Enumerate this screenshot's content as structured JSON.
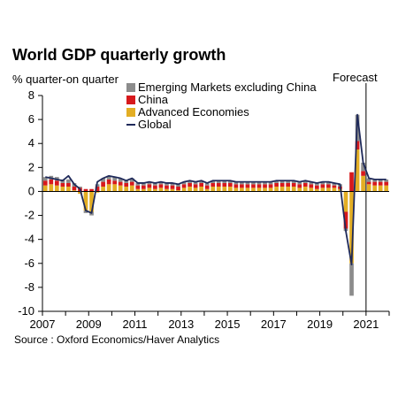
{
  "title": "World GDP quarterly growth",
  "forecast_label": "Forecast",
  "source": "Source : Oxford Economics/Haver Analytics",
  "colors": {
    "emerging": "#8c8c8c",
    "china": "#d7191c",
    "advanced": "#e3ae24",
    "global": "#1f2a5a"
  },
  "chart_data": {
    "type": "bar",
    "stacked": true,
    "title": "World GDP quarterly growth",
    "ylabel": "% quarter-on quarter",
    "xlabel": "",
    "ylim": [
      -10,
      8
    ],
    "yticks": [
      "8",
      "6",
      "4",
      "2",
      "0",
      "-2",
      "-4",
      "-6",
      "-8",
      "-10"
    ],
    "xticks": [
      "2007",
      "2009",
      "2011",
      "2013",
      "2015",
      "2017",
      "2019",
      "2021"
    ],
    "forecast_from": "2021Q1",
    "legend_position": "top",
    "categories": [
      "2007Q1",
      "2007Q2",
      "2007Q3",
      "2007Q4",
      "2008Q1",
      "2008Q2",
      "2008Q3",
      "2008Q4",
      "2009Q1",
      "2009Q2",
      "2009Q3",
      "2009Q4",
      "2010Q1",
      "2010Q2",
      "2010Q3",
      "2010Q4",
      "2011Q1",
      "2011Q2",
      "2011Q3",
      "2011Q4",
      "2012Q1",
      "2012Q2",
      "2012Q3",
      "2012Q4",
      "2013Q1",
      "2013Q2",
      "2013Q3",
      "2013Q4",
      "2014Q1",
      "2014Q2",
      "2014Q3",
      "2014Q4",
      "2015Q1",
      "2015Q2",
      "2015Q3",
      "2015Q4",
      "2016Q1",
      "2016Q2",
      "2016Q3",
      "2016Q4",
      "2017Q1",
      "2017Q2",
      "2017Q3",
      "2017Q4",
      "2018Q1",
      "2018Q2",
      "2018Q3",
      "2018Q4",
      "2019Q1",
      "2019Q2",
      "2019Q3",
      "2019Q4",
      "2020Q1",
      "2020Q2",
      "2020Q3",
      "2020Q4",
      "2021Q1",
      "2021Q2",
      "2021Q3",
      "2021Q4"
    ],
    "series": [
      {
        "name": "Advanced Economies",
        "values": [
          0.5,
          0.6,
          0.5,
          0.4,
          0.4,
          0.1,
          -0.2,
          -1.6,
          -1.7,
          -0.1,
          0.4,
          0.6,
          0.6,
          0.5,
          0.4,
          0.5,
          0.2,
          0.2,
          0.3,
          0.2,
          0.3,
          0.2,
          0.2,
          0.1,
          0.3,
          0.4,
          0.3,
          0.4,
          0.2,
          0.4,
          0.4,
          0.4,
          0.4,
          0.3,
          0.3,
          0.3,
          0.3,
          0.3,
          0.3,
          0.3,
          0.4,
          0.4,
          0.4,
          0.4,
          0.3,
          0.4,
          0.3,
          0.2,
          0.3,
          0.3,
          0.3,
          0.2,
          -1.7,
          -6.0,
          3.5,
          1.3,
          0.6,
          0.5,
          0.5,
          0.5
        ]
      },
      {
        "name": "China",
        "values": [
          0.4,
          0.4,
          0.4,
          0.3,
          0.3,
          0.3,
          0.3,
          0.2,
          0.2,
          0.4,
          0.4,
          0.4,
          0.3,
          0.3,
          0.3,
          0.3,
          0.3,
          0.3,
          0.3,
          0.3,
          0.3,
          0.3,
          0.3,
          0.3,
          0.3,
          0.3,
          0.3,
          0.3,
          0.3,
          0.3,
          0.3,
          0.3,
          0.3,
          0.3,
          0.3,
          0.3,
          0.3,
          0.3,
          0.3,
          0.3,
          0.3,
          0.3,
          0.3,
          0.3,
          0.3,
          0.3,
          0.3,
          0.3,
          0.3,
          0.3,
          0.2,
          0.2,
          -1.4,
          1.6,
          0.7,
          0.4,
          0.2,
          0.3,
          0.3,
          0.3
        ]
      },
      {
        "name": "Emerging Markets excluding China",
        "values": [
          0.3,
          0.3,
          0.3,
          0.3,
          0.3,
          0.3,
          0.1,
          -0.2,
          -0.3,
          0.2,
          0.3,
          0.3,
          0.3,
          0.3,
          0.2,
          0.3,
          0.2,
          0.2,
          0.2,
          0.2,
          0.2,
          0.2,
          0.2,
          0.2,
          0.2,
          0.2,
          0.2,
          0.2,
          0.2,
          0.2,
          0.2,
          0.2,
          0.2,
          0.2,
          0.2,
          0.2,
          0.2,
          0.2,
          0.2,
          0.2,
          0.2,
          0.2,
          0.2,
          0.2,
          0.2,
          0.2,
          0.2,
          0.2,
          0.2,
          0.2,
          0.2,
          0.2,
          -0.2,
          -2.7,
          2.2,
          0.7,
          0.3,
          0.2,
          0.2,
          0.2
        ]
      },
      {
        "name": "Global",
        "type": "line",
        "values": [
          1.2,
          1.1,
          1.0,
          0.9,
          1.3,
          0.6,
          0.2,
          -1.6,
          -1.8,
          0.8,
          1.1,
          1.3,
          1.2,
          1.1,
          0.9,
          1.1,
          0.7,
          0.7,
          0.8,
          0.7,
          0.8,
          0.7,
          0.7,
          0.6,
          0.8,
          0.9,
          0.8,
          0.9,
          0.7,
          0.9,
          0.9,
          0.9,
          0.9,
          0.8,
          0.8,
          0.8,
          0.8,
          0.8,
          0.8,
          0.8,
          0.9,
          0.9,
          0.9,
          0.9,
          0.8,
          0.9,
          0.8,
          0.7,
          0.8,
          0.8,
          0.7,
          0.6,
          -3.3,
          -6.1,
          6.4,
          2.4,
          1.1,
          1.0,
          1.0,
          1.0
        ]
      }
    ]
  }
}
